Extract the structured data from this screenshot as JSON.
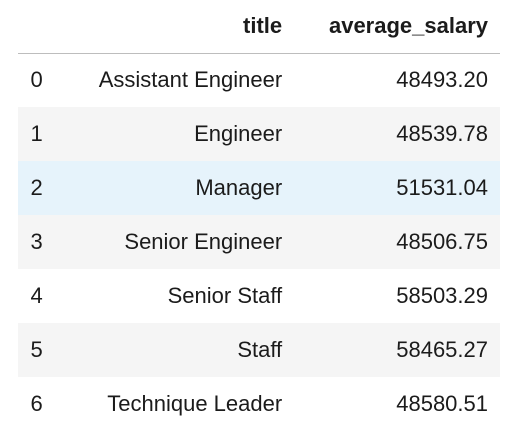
{
  "table": {
    "columns": {
      "index": "",
      "title": "title",
      "average_salary": "average_salary"
    },
    "rows": [
      {
        "index": "0",
        "title": "Assistant Engineer",
        "average_salary": "48493.20"
      },
      {
        "index": "1",
        "title": "Engineer",
        "average_salary": "48539.78"
      },
      {
        "index": "2",
        "title": "Manager",
        "average_salary": "51531.04"
      },
      {
        "index": "3",
        "title": "Senior Engineer",
        "average_salary": "48506.75"
      },
      {
        "index": "4",
        "title": "Senior Staff",
        "average_salary": "58503.29"
      },
      {
        "index": "5",
        "title": "Staff",
        "average_salary": "58465.27"
      },
      {
        "index": "6",
        "title": "Technique Leader",
        "average_salary": "48580.51"
      }
    ],
    "hovered_row_color": "#e6f3fb",
    "striped_row_color": "#f5f5f5"
  }
}
